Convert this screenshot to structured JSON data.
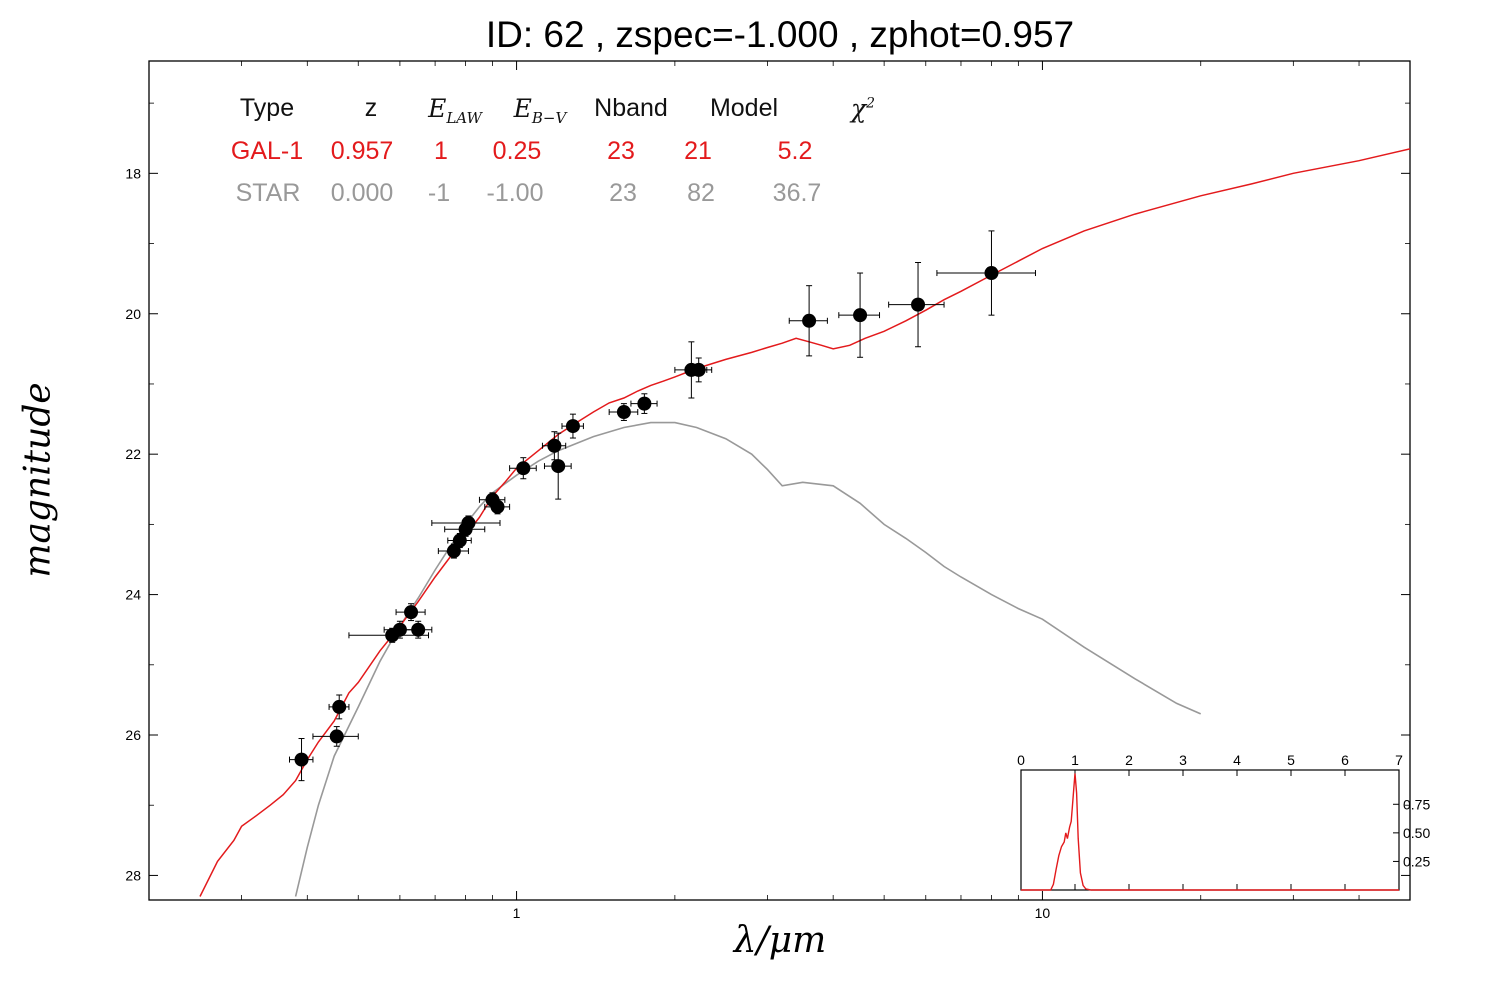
{
  "title": "ID:  62    , zspec=-1.000 , zphot=0.957",
  "xlabel": "λ/μm",
  "ylabel": "magnitude",
  "table": {
    "headers": {
      "type": "Type",
      "z": "z",
      "elaw": "LAW",
      "ebv": "B−V",
      "nband": "Nband",
      "model": "Model",
      "chi2": "2"
    },
    "rows": [
      {
        "type": "GAL-1",
        "z": "0.957",
        "elaw": "1",
        "ebv": "0.25",
        "nband": "23",
        "model": "21",
        "chi2": "5.2"
      },
      {
        "type": "STAR",
        "z": "0.000",
        "elaw": "-1",
        "ebv": "-1.00",
        "nband": "23",
        "model": "82",
        "chi2": "36.7"
      }
    ]
  },
  "colors": {
    "galaxy": "#e31a1c",
    "star": "#999999",
    "points": "#000000"
  },
  "chart_data": [
    {
      "type": "scatter",
      "xscale": "log",
      "xlim": [
        0.2,
        50
      ],
      "ylim": [
        28.35,
        16.4
      ],
      "y_inverted": true,
      "yticks": [
        18,
        20,
        22,
        24,
        26,
        28
      ],
      "xticks": [
        1,
        10
      ],
      "xtick_labels": [
        "1",
        "10"
      ],
      "xlabel": "λ/μm",
      "ylabel": "magnitude",
      "points": [
        {
          "x": 0.39,
          "y": 26.35,
          "xerr": [
            0.37,
            0.41
          ],
          "yerr": 0.3
        },
        {
          "x": 0.46,
          "y": 25.6,
          "xerr": [
            0.44,
            0.48
          ],
          "yerr": 0.17
        },
        {
          "x": 0.455,
          "y": 26.02,
          "xerr": [
            0.41,
            0.5
          ],
          "yerr": 0.14
        },
        {
          "x": 0.58,
          "y": 24.58,
          "xerr": [
            0.48,
            0.68
          ],
          "yerr": 0.1
        },
        {
          "x": 0.6,
          "y": 24.5,
          "xerr": [
            0.56,
            0.64
          ],
          "yerr": 0.12
        },
        {
          "x": 0.63,
          "y": 24.25,
          "xerr": [
            0.59,
            0.67
          ],
          "yerr": 0.12
        },
        {
          "x": 0.65,
          "y": 24.5,
          "xerr": [
            0.61,
            0.69
          ],
          "yerr": 0.12
        },
        {
          "x": 0.76,
          "y": 23.38,
          "xerr": [
            0.71,
            0.81
          ],
          "yerr": 0.1
        },
        {
          "x": 0.78,
          "y": 23.23,
          "xerr": [
            0.74,
            0.82
          ],
          "yerr": 0.1
        },
        {
          "x": 0.8,
          "y": 23.07,
          "xerr": [
            0.73,
            0.87
          ],
          "yerr": 0.1
        },
        {
          "x": 0.81,
          "y": 22.98,
          "xerr": [
            0.69,
            0.93
          ],
          "yerr": 0.1
        },
        {
          "x": 0.9,
          "y": 22.65,
          "xerr": [
            0.85,
            0.95
          ],
          "yerr": 0.1
        },
        {
          "x": 0.92,
          "y": 22.75,
          "xerr": [
            0.87,
            0.97
          ],
          "yerr": 0.1
        },
        {
          "x": 1.03,
          "y": 22.2,
          "xerr": [
            0.97,
            1.09
          ],
          "yerr": 0.15
        },
        {
          "x": 1.18,
          "y": 21.88,
          "xerr": [
            1.12,
            1.24
          ],
          "yerr": 0.2
        },
        {
          "x": 1.2,
          "y": 22.17,
          "xerr": [
            1.13,
            1.27
          ],
          "yerr": 0.47
        },
        {
          "x": 1.28,
          "y": 21.6,
          "xerr": [
            1.22,
            1.34
          ],
          "yerr": 0.17
        },
        {
          "x": 1.6,
          "y": 21.4,
          "xerr": [
            1.5,
            1.7
          ],
          "yerr": 0.12
        },
        {
          "x": 1.75,
          "y": 21.28,
          "xerr": [
            1.65,
            1.85
          ],
          "yerr": 0.14
        },
        {
          "x": 2.15,
          "y": 20.8,
          "xerr": [
            2.0,
            2.3
          ],
          "yerr": 0.4
        },
        {
          "x": 2.22,
          "y": 20.8,
          "xerr": [
            2.1,
            2.35
          ],
          "yerr": 0.17
        },
        {
          "x": 3.6,
          "y": 20.1,
          "xerr": [
            3.3,
            3.9
          ],
          "yerr": 0.5
        },
        {
          "x": 4.5,
          "y": 20.02,
          "xerr": [
            4.1,
            4.9
          ],
          "yerr": 0.6
        },
        {
          "x": 5.8,
          "y": 19.87,
          "xerr": [
            5.1,
            6.5
          ],
          "yerr": 0.6
        },
        {
          "x": 8.0,
          "y": 19.42,
          "xerr": [
            6.3,
            9.7
          ],
          "yerr": 0.6
        }
      ],
      "series": [
        {
          "name": "GAL-1",
          "x": [
            0.25,
            0.27,
            0.29,
            0.3,
            0.32,
            0.34,
            0.36,
            0.38,
            0.4,
            0.42,
            0.45,
            0.48,
            0.5,
            0.55,
            0.6,
            0.65,
            0.7,
            0.75,
            0.8,
            0.85,
            0.9,
            0.95,
            1.0,
            1.1,
            1.2,
            1.3,
            1.4,
            1.5,
            1.6,
            1.7,
            1.8,
            1.9,
            2.0,
            2.2,
            2.5,
            2.8,
            3.0,
            3.2,
            3.4,
            3.6,
            3.8,
            4.0,
            4.3,
            4.6,
            5.0,
            5.5,
            6.0,
            6.5,
            7.0,
            8.0,
            9.0,
            10.0,
            12.0,
            15.0,
            20.0,
            25.0,
            30.0,
            40.0,
            50.0
          ],
          "y": [
            28.3,
            27.8,
            27.5,
            27.3,
            27.15,
            27.0,
            26.85,
            26.65,
            26.35,
            26.1,
            25.8,
            25.4,
            25.25,
            24.8,
            24.45,
            24.1,
            23.75,
            23.45,
            23.15,
            22.9,
            22.6,
            22.4,
            22.2,
            21.95,
            21.72,
            21.55,
            21.4,
            21.27,
            21.2,
            21.1,
            21.02,
            20.96,
            20.9,
            20.78,
            20.65,
            20.55,
            20.48,
            20.42,
            20.35,
            20.4,
            20.45,
            20.5,
            20.45,
            20.35,
            20.25,
            20.1,
            19.95,
            19.8,
            19.68,
            19.45,
            19.25,
            19.07,
            18.82,
            18.58,
            18.32,
            18.15,
            18.0,
            17.82,
            17.65
          ]
        },
        {
          "name": "STAR",
          "x": [
            0.38,
            0.4,
            0.42,
            0.45,
            0.5,
            0.55,
            0.6,
            0.65,
            0.7,
            0.75,
            0.8,
            0.85,
            0.9,
            1.0,
            1.1,
            1.2,
            1.4,
            1.6,
            1.8,
            2.0,
            2.2,
            2.5,
            2.8,
            3.0,
            3.2,
            3.5,
            4.0,
            4.5,
            5.0,
            5.5,
            6.0,
            6.5,
            7.0,
            8.0,
            9.0,
            10.0,
            12.0,
            15.0,
            18.0,
            20.0
          ],
          "y": [
            28.3,
            27.6,
            27.0,
            26.3,
            25.6,
            24.95,
            24.45,
            24.05,
            23.65,
            23.3,
            23.0,
            22.75,
            22.55,
            22.3,
            22.1,
            21.95,
            21.75,
            21.62,
            21.55,
            21.55,
            21.62,
            21.78,
            22.0,
            22.22,
            22.45,
            22.4,
            22.45,
            22.7,
            23.0,
            23.2,
            23.4,
            23.6,
            23.75,
            24.0,
            24.2,
            24.35,
            24.75,
            25.2,
            25.55,
            25.7
          ]
        }
      ]
    },
    {
      "type": "line",
      "xlim": [
        0,
        7
      ],
      "xticks": [
        0,
        1,
        2,
        3,
        4,
        5,
        6,
        7
      ],
      "yticks": [
        0.25,
        0.5,
        0.75
      ],
      "ylim": [
        0,
        1.05
      ],
      "series": [
        {
          "name": "",
          "x": [
            0.0,
            0.55,
            0.6,
            0.65,
            0.7,
            0.75,
            0.8,
            0.83,
            0.86,
            0.9,
            0.93,
            0.95,
            0.98,
            1.0,
            1.03,
            1.06,
            1.1,
            1.15,
            1.2,
            1.3,
            7.0
          ],
          "y": [
            0.0,
            0.0,
            0.05,
            0.18,
            0.3,
            0.38,
            0.42,
            0.5,
            0.45,
            0.55,
            0.6,
            0.72,
            0.9,
            1.02,
            0.85,
            0.45,
            0.15,
            0.04,
            0.01,
            0.0,
            0.0
          ]
        }
      ]
    }
  ]
}
